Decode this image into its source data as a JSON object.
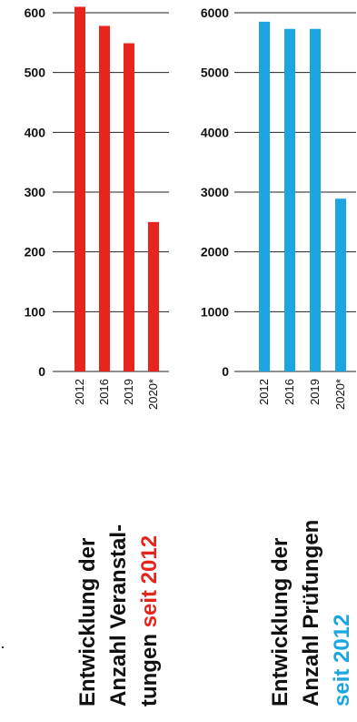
{
  "chart_data": [
    {
      "type": "bar",
      "categories": [
        "2012",
        "2016",
        "2019",
        "2020*"
      ],
      "values": [
        610,
        578,
        549,
        250
      ],
      "ylim": [
        0,
        600
      ],
      "yticks": [
        "0",
        "100",
        "200",
        "300",
        "400",
        "500",
        "600"
      ],
      "color": "#e8251c",
      "title_lines": [
        [
          {
            "text": "Entwicklung der",
            "accent": false
          }
        ],
        [
          {
            "text": "Anzahl Veranstal-",
            "accent": false
          }
        ],
        [
          {
            "text": "tungen ",
            "accent": false
          },
          {
            "text": "seit 2012",
            "accent": true
          }
        ]
      ]
    },
    {
      "type": "bar",
      "categories": [
        "2012",
        "2016",
        "2019",
        "2020*"
      ],
      "values": [
        5850,
        5730,
        5730,
        2890
      ],
      "ylim": [
        0,
        6000
      ],
      "yticks": [
        "0",
        "1000",
        "2000",
        "3000",
        "4000",
        "5000",
        "6000"
      ],
      "color": "#1ba6e2",
      "title_lines": [
        [
          {
            "text": "Entwicklung der",
            "accent": false
          }
        ],
        [
          {
            "text": "Anzahl Prüfungen",
            "accent": false
          }
        ],
        [
          {
            "text": "seit 2012",
            "accent": true
          }
        ]
      ]
    }
  ]
}
